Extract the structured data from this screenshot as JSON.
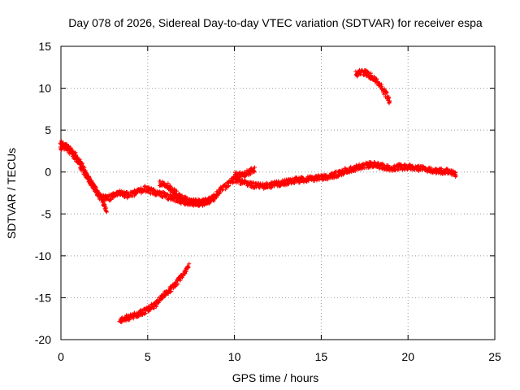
{
  "chart_data": {
    "type": "scatter",
    "title": "Day 078 of 2026, Sidereal Day-to-day VTEC variation (SDTVAR) for receiver espa",
    "xlabel": "GPS time / hours",
    "ylabel": "SDTVAR / TECUs",
    "xlim": [
      0,
      25
    ],
    "ylim": [
      -20,
      15
    ],
    "xticks": [
      0,
      5,
      10,
      15,
      20,
      25
    ],
    "yticks": [
      -20,
      -15,
      -10,
      -5,
      0,
      5,
      10,
      15
    ],
    "grid": true,
    "marker": "+",
    "color": "#ff0000",
    "series": [
      {
        "name": "main-track",
        "x": [
          0.0,
          0.3,
          0.6,
          0.9,
          1.2,
          1.5,
          1.8,
          2.1,
          2.4,
          2.7,
          3.0,
          3.3,
          3.6,
          3.9,
          4.2,
          4.5,
          4.8,
          5.1,
          5.4,
          5.7,
          6.0,
          6.3,
          6.6,
          6.9,
          7.2,
          7.5,
          7.8,
          8.1,
          8.4,
          8.7,
          9.0,
          9.3,
          9.6,
          9.9,
          10.2,
          10.5,
          10.8,
          11.1,
          11.5,
          12.0,
          12.5,
          13.0,
          13.5,
          14.0,
          14.5,
          15.0,
          15.5,
          16.0,
          16.5,
          17.0,
          17.5,
          18.0,
          18.5,
          19.0,
          19.5,
          20.0,
          20.5,
          21.0,
          21.5,
          22.0,
          22.5,
          22.8
        ],
        "y": [
          2.8,
          3.2,
          2.5,
          1.5,
          0.5,
          -0.5,
          -1.5,
          -2.5,
          -3.0,
          -3.2,
          -2.8,
          -2.5,
          -2.6,
          -2.8,
          -2.5,
          -2.3,
          -2.0,
          -2.2,
          -2.4,
          -2.6,
          -2.8,
          -3.0,
          -3.2,
          -3.4,
          -3.6,
          -3.7,
          -3.8,
          -3.8,
          -3.6,
          -3.2,
          -2.6,
          -2.0,
          -1.5,
          -1.0,
          -1.0,
          -1.2,
          -1.4,
          -1.6,
          -1.7,
          -1.6,
          -1.4,
          -1.2,
          -1.0,
          -0.9,
          -0.8,
          -0.7,
          -0.5,
          -0.2,
          0.2,
          0.5,
          0.8,
          0.9,
          0.7,
          0.4,
          0.6,
          0.6,
          0.5,
          0.3,
          0.2,
          0.1,
          0.0,
          -0.4
        ]
      },
      {
        "name": "initial-drop",
        "x": [
          0.0,
          0.4,
          0.8,
          1.2,
          1.6,
          2.0,
          2.4,
          2.7
        ],
        "y": [
          3.4,
          2.8,
          2.0,
          0.8,
          -0.8,
          -2.2,
          -3.5,
          -4.8
        ]
      },
      {
        "name": "arc-5h-9h",
        "x": [
          5.7,
          6.1,
          6.5,
          6.9,
          7.3,
          7.7,
          8.1,
          8.5,
          8.9
        ],
        "y": [
          -1.3,
          -1.6,
          -2.3,
          -3.0,
          -3.4,
          -3.6,
          -3.6,
          -3.4,
          -3.1
        ]
      },
      {
        "name": "spur-10h-11h",
        "x": [
          10.0,
          10.4,
          10.8,
          11.2
        ],
        "y": [
          -0.4,
          -0.3,
          -0.1,
          0.4
        ]
      },
      {
        "name": "high-arc",
        "x": [
          17.0,
          17.3,
          17.6,
          17.9,
          18.2,
          18.5,
          18.8,
          19.0
        ],
        "y": [
          11.7,
          11.9,
          11.8,
          11.4,
          10.9,
          10.0,
          9.0,
          8.4
        ]
      },
      {
        "name": "low-arc",
        "x": [
          3.4,
          3.8,
          4.2,
          4.6,
          5.0,
          5.4,
          5.8,
          6.2,
          6.6,
          7.0,
          7.4
        ],
        "y": [
          -17.8,
          -17.4,
          -17.2,
          -16.8,
          -16.4,
          -15.9,
          -15.0,
          -14.2,
          -13.4,
          -12.3,
          -11.0
        ]
      }
    ]
  }
}
